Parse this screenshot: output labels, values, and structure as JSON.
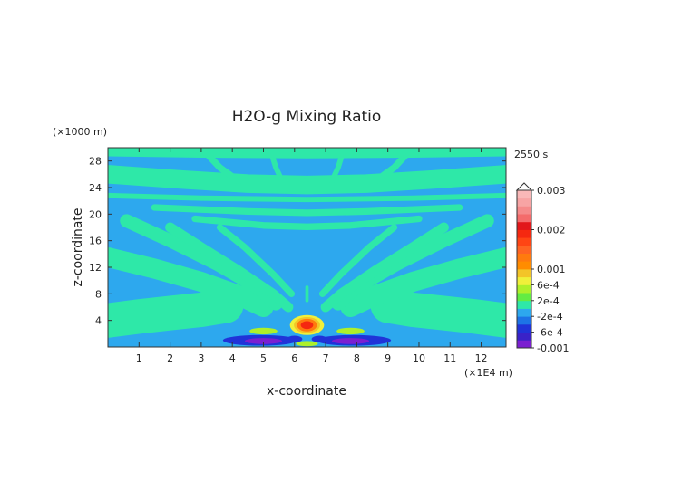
{
  "chart_data": {
    "type": "heatmap",
    "title": "H2O-g Mixing Ratio",
    "time_label": "2550 s",
    "xlabel": "x-coordinate",
    "ylabel": "z-coordinate",
    "x_unit": "(×1E4 m)",
    "y_unit": "(×1000 m)",
    "xlim": [
      0,
      12.8
    ],
    "ylim": [
      0,
      30
    ],
    "x_ticks": [
      1,
      2,
      3,
      4,
      5,
      6,
      7,
      8,
      9,
      10,
      11,
      12
    ],
    "y_ticks": [
      4,
      8,
      12,
      16,
      20,
      24,
      28
    ],
    "background_value": -0.0002,
    "colorbar": {
      "labels": [
        "0.003",
        "0.002",
        "0.001",
        "6e-4",
        "2e-4",
        "-2e-4",
        "-6e-4",
        "-0.001"
      ],
      "label_values": [
        0.003,
        0.002,
        0.001,
        0.0006,
        0.0002,
        -0.0002,
        -0.0006,
        -0.001
      ],
      "levels": [
        -0.001,
        -0.0008,
        -0.0006,
        -0.0004,
        -0.0002,
        0,
        0.0002,
        0.0004,
        0.0006,
        0.0008,
        0.001,
        0.0012,
        0.0014,
        0.0016,
        0.0018,
        0.002,
        0.0022,
        0.0024,
        0.0026,
        0.0028,
        0.003
      ],
      "colors": [
        "#7b1fd0",
        "#3a22c8",
        "#2033d8",
        "#1d73e6",
        "#2da8ee",
        "#2ee8a8",
        "#62ec43",
        "#aef02a",
        "#f0f03a",
        "#f3c428",
        "#ff8c00",
        "#ff7a0e",
        "#ff6422",
        "#ff4514",
        "#f52810",
        "#e2171a",
        "#f46b6b",
        "#f58a8a",
        "#f7a4a4",
        "#f9b8b8"
      ]
    },
    "regions": [
      {
        "value": 0.0001,
        "shape": "band",
        "points": [
          [
            0,
            4
          ],
          [
            1,
            4.6
          ],
          [
            2,
            5.1
          ],
          [
            3,
            5.6
          ],
          [
            3.8,
            6.2
          ]
        ],
        "half_width": 2.6
      },
      {
        "value": 0.0001,
        "shape": "band",
        "points": [
          [
            12.8,
            4
          ],
          [
            11.8,
            4.6
          ],
          [
            10.8,
            5.1
          ],
          [
            9.8,
            5.6
          ],
          [
            9,
            6.2
          ]
        ],
        "half_width": 2.6
      },
      {
        "value": 0.0001,
        "shape": "band",
        "points": [
          [
            0,
            13.5
          ],
          [
            1.5,
            11.8
          ],
          [
            3,
            9.8
          ],
          [
            4.2,
            7.8
          ],
          [
            5,
            6
          ]
        ],
        "half_width": 1.5
      },
      {
        "value": 0.0001,
        "shape": "band",
        "points": [
          [
            12.8,
            13.5
          ],
          [
            11.3,
            11.8
          ],
          [
            9.8,
            9.8
          ],
          [
            8.6,
            7.8
          ],
          [
            7.8,
            6
          ]
        ],
        "half_width": 1.5
      },
      {
        "value": 0.0001,
        "shape": "band",
        "points": [
          [
            0.6,
            19
          ],
          [
            2,
            16
          ],
          [
            3.5,
            12.5
          ],
          [
            4.8,
            9
          ],
          [
            5.4,
            6.5
          ]
        ],
        "half_width": 1.0
      },
      {
        "value": 0.0001,
        "shape": "band",
        "points": [
          [
            12.2,
            19
          ],
          [
            10.8,
            16
          ],
          [
            9.3,
            12.5
          ],
          [
            8,
            9
          ],
          [
            7.4,
            6.5
          ]
        ],
        "half_width": 1.0
      },
      {
        "value": 0.0001,
        "shape": "band",
        "points": [
          [
            2,
            18
          ],
          [
            3,
            15
          ],
          [
            4.2,
            11.5
          ],
          [
            5.3,
            8
          ],
          [
            5.8,
            6
          ]
        ],
        "half_width": 0.75
      },
      {
        "value": 0.0001,
        "shape": "band",
        "points": [
          [
            10.8,
            18
          ],
          [
            9.8,
            15
          ],
          [
            8.6,
            11.5
          ],
          [
            7.5,
            8
          ],
          [
            7,
            6
          ]
        ],
        "half_width": 0.75
      },
      {
        "value": 0.0001,
        "shape": "band",
        "points": [
          [
            3.6,
            18
          ],
          [
            4.4,
            15
          ],
          [
            5.3,
            11
          ],
          [
            5.9,
            8
          ]
        ],
        "half_width": 0.5
      },
      {
        "value": 0.0001,
        "shape": "band",
        "points": [
          [
            9.2,
            18
          ],
          [
            8.4,
            15
          ],
          [
            7.5,
            11
          ],
          [
            6.9,
            8
          ]
        ],
        "half_width": 0.5
      },
      {
        "value": 0.0001,
        "shape": "band",
        "points": [
          [
            1.5,
            21
          ],
          [
            4.5,
            20.4
          ],
          [
            6.4,
            20.2
          ],
          [
            8.3,
            20.4
          ],
          [
            11.3,
            21
          ]
        ],
        "half_width": 0.5
      },
      {
        "value": 0.0001,
        "shape": "band",
        "points": [
          [
            2.8,
            19.3
          ],
          [
            5,
            18.3
          ],
          [
            6.4,
            18.1
          ],
          [
            7.8,
            18.3
          ],
          [
            10,
            19.3
          ]
        ],
        "half_width": 0.5
      },
      {
        "value": 0.0001,
        "shape": "band",
        "points": [
          [
            0,
            22.8
          ],
          [
            3,
            22.4
          ],
          [
            6.4,
            22.2
          ],
          [
            9.8,
            22.4
          ],
          [
            12.8,
            22.8
          ]
        ],
        "half_width": 0.4
      },
      {
        "value": 0.0001,
        "shape": "band",
        "points": [
          [
            0,
            26
          ],
          [
            2.4,
            25.2
          ],
          [
            4.5,
            24.6
          ],
          [
            6.4,
            24.4
          ],
          [
            8.3,
            24.6
          ],
          [
            10.4,
            25.2
          ],
          [
            12.8,
            26
          ]
        ],
        "half_width": 1.4
      },
      {
        "value": 0.0001,
        "shape": "band",
        "points": [
          [
            0,
            29.6
          ],
          [
            3,
            29.4
          ],
          [
            6.4,
            29.3
          ],
          [
            9.8,
            29.4
          ],
          [
            12.8,
            29.6
          ]
        ],
        "half_width": 0.9
      },
      {
        "value": 0.0001,
        "shape": "band",
        "points": [
          [
            3,
            30
          ],
          [
            3.6,
            27
          ],
          [
            4.2,
            25
          ]
        ],
        "half_width": 0.5
      },
      {
        "value": 0.0001,
        "shape": "band",
        "points": [
          [
            9.8,
            30
          ],
          [
            9.2,
            27
          ],
          [
            8.6,
            25
          ]
        ],
        "half_width": 0.5
      },
      {
        "value": 0.0001,
        "shape": "band",
        "points": [
          [
            5.2,
            30
          ],
          [
            5.4,
            27
          ],
          [
            5.6,
            25
          ]
        ],
        "half_width": 0.4
      },
      {
        "value": 0.0001,
        "shape": "band",
        "points": [
          [
            7.6,
            30
          ],
          [
            7.4,
            27
          ],
          [
            7.2,
            25
          ]
        ],
        "half_width": 0.4
      },
      {
        "value": 0.0001,
        "shape": "band",
        "points": [
          [
            6.4,
            9
          ],
          [
            6.4,
            7
          ]
        ],
        "half_width": 0.25
      },
      {
        "value": 0.0005,
        "shape": "ellipse",
        "center": [
          5.0,
          2.4
        ],
        "radii": [
          0.45,
          0.5
        ]
      },
      {
        "value": 0.0005,
        "shape": "ellipse",
        "center": [
          7.8,
          2.4
        ],
        "radii": [
          0.45,
          0.5
        ]
      },
      {
        "value": 0.0007,
        "shape": "ellipse",
        "center": [
          6.4,
          3.3
        ],
        "radii": [
          0.55,
          1.5
        ]
      },
      {
        "value": 0.0009,
        "shape": "ellipse",
        "center": [
          6.4,
          3.3
        ],
        "radii": [
          0.42,
          1.2
        ]
      },
      {
        "value": 0.0013,
        "shape": "ellipse",
        "center": [
          6.4,
          3.3
        ],
        "radii": [
          0.32,
          0.95
        ]
      },
      {
        "value": 0.0019,
        "shape": "ellipse",
        "center": [
          6.4,
          3.3
        ],
        "radii": [
          0.2,
          0.6
        ]
      },
      {
        "value": -0.0005,
        "shape": "ellipse",
        "center": [
          6.0,
          1.2
        ],
        "radii": [
          0.25,
          0.5
        ]
      },
      {
        "value": -0.0005,
        "shape": "ellipse",
        "center": [
          6.8,
          1.2
        ],
        "radii": [
          0.25,
          0.5
        ]
      },
      {
        "value": -0.0005,
        "shape": "ellipse",
        "center": [
          4.9,
          1.0
        ],
        "radii": [
          1.2,
          0.8
        ]
      },
      {
        "value": -0.0005,
        "shape": "ellipse",
        "center": [
          7.9,
          1.0
        ],
        "radii": [
          1.2,
          0.8
        ]
      },
      {
        "value": -0.0009,
        "shape": "ellipse",
        "center": [
          5.0,
          0.9
        ],
        "radii": [
          0.6,
          0.45
        ]
      },
      {
        "value": -0.0009,
        "shape": "ellipse",
        "center": [
          7.8,
          0.9
        ],
        "radii": [
          0.6,
          0.45
        ]
      },
      {
        "value": 0.0005,
        "shape": "ellipse",
        "center": [
          6.4,
          0.5
        ],
        "radii": [
          0.35,
          0.4
        ]
      }
    ]
  }
}
